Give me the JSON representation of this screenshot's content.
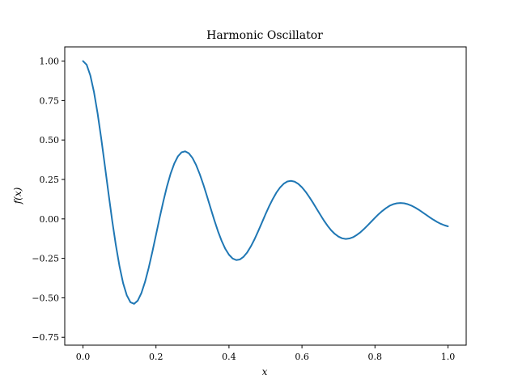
{
  "chart_data": {
    "type": "line",
    "title": "Harmonic Oscillator",
    "xlabel": "x",
    "ylabel": "f(x)",
    "xlim": [
      -0.05,
      1.05
    ],
    "ylim": [
      -0.8,
      1.09
    ],
    "xticks": [
      0.0,
      0.2,
      0.4,
      0.6,
      0.8,
      1.0
    ],
    "xtick_labels": [
      "0.0",
      "0.2",
      "0.4",
      "0.6",
      "0.8",
      "1.0"
    ],
    "yticks": [
      -0.75,
      -0.5,
      -0.25,
      0.0,
      0.25,
      0.5,
      0.75,
      1.0
    ],
    "ytick_labels": [
      "−0.75",
      "−0.50",
      "−0.25",
      "0.00",
      "0.25",
      "0.50",
      "0.75",
      "1.00"
    ],
    "grid": false,
    "series": [
      {
        "color": "#1f77b4",
        "x": [
          0.0,
          0.01,
          0.02,
          0.03,
          0.04,
          0.05,
          0.06,
          0.07,
          0.08,
          0.09,
          0.1,
          0.11,
          0.12,
          0.13,
          0.14,
          0.15,
          0.16,
          0.17,
          0.18,
          0.19,
          0.2,
          0.21,
          0.22,
          0.23,
          0.24,
          0.25,
          0.26,
          0.27,
          0.28,
          0.29,
          0.3,
          0.31,
          0.32,
          0.33,
          0.34,
          0.35,
          0.36,
          0.37,
          0.38,
          0.39,
          0.4,
          0.41,
          0.42,
          0.43,
          0.44,
          0.45,
          0.46,
          0.47,
          0.48,
          0.49,
          0.5,
          0.51,
          0.52,
          0.53,
          0.54,
          0.55,
          0.56,
          0.57,
          0.58,
          0.59,
          0.6,
          0.61,
          0.62,
          0.63,
          0.64,
          0.65,
          0.66,
          0.67,
          0.68,
          0.69,
          0.7,
          0.71,
          0.72,
          0.73,
          0.74,
          0.75,
          0.76,
          0.77,
          0.78,
          0.79,
          0.8,
          0.81,
          0.82,
          0.83,
          0.84,
          0.85,
          0.86,
          0.87,
          0.88,
          0.89,
          0.9,
          0.91,
          0.92,
          0.93,
          0.94,
          0.95,
          0.96,
          0.97,
          0.98,
          0.99,
          1.0
        ],
        "y": [
          1.0,
          0.977,
          0.91,
          0.805,
          0.669,
          0.509,
          0.336,
          0.16,
          -0.011,
          -0.166,
          -0.3,
          -0.408,
          -0.484,
          -0.528,
          -0.538,
          -0.518,
          -0.47,
          -0.399,
          -0.31,
          -0.209,
          -0.101,
          0.007,
          0.11,
          0.205,
          0.286,
          0.35,
          0.396,
          0.422,
          0.428,
          0.416,
          0.386,
          0.341,
          0.283,
          0.216,
          0.142,
          0.066,
          -0.009,
          -0.079,
          -0.14,
          -0.19,
          -0.227,
          -0.251,
          -0.261,
          -0.257,
          -0.24,
          -0.212,
          -0.174,
          -0.129,
          -0.078,
          -0.025,
          0.029,
          0.08,
          0.126,
          0.167,
          0.199,
          0.223,
          0.237,
          0.241,
          0.236,
          0.222,
          0.2,
          0.172,
          0.139,
          0.103,
          0.065,
          0.027,
          -0.01,
          -0.043,
          -0.072,
          -0.095,
          -0.112,
          -0.123,
          -0.127,
          -0.124,
          -0.116,
          -0.102,
          -0.085,
          -0.064,
          -0.041,
          -0.017,
          0.007,
          0.03,
          0.05,
          0.068,
          0.083,
          0.093,
          0.099,
          0.101,
          0.099,
          0.093,
          0.084,
          0.072,
          0.058,
          0.042,
          0.026,
          0.01,
          -0.005,
          -0.019,
          -0.031,
          -0.04,
          -0.047
        ]
      }
    ]
  }
}
